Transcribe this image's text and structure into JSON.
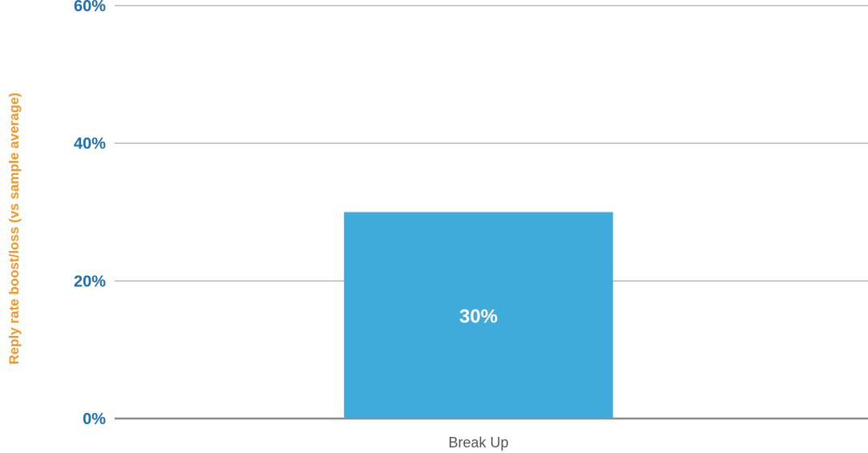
{
  "chart_data": {
    "type": "bar",
    "categories": [
      "Break Up"
    ],
    "values": [
      30
    ],
    "data_labels": [
      "30%"
    ],
    "ylabel": "Reply rate boost/loss (vs sample average)",
    "xlabel": "",
    "ylim": [
      0,
      60
    ],
    "yticks": [
      0,
      20,
      40,
      60
    ],
    "ytick_labels": [
      "0%",
      "20%",
      "40%",
      "60%"
    ],
    "grid": true,
    "legend": "none"
  },
  "colors": {
    "bar": "#3fabdb",
    "tick_label": "#1f6fb2",
    "axis_label": "#f0962b",
    "gridline": "#999999",
    "baseline": "#8a8a8a",
    "category_label": "#555555",
    "data_label": "#ffffff"
  }
}
